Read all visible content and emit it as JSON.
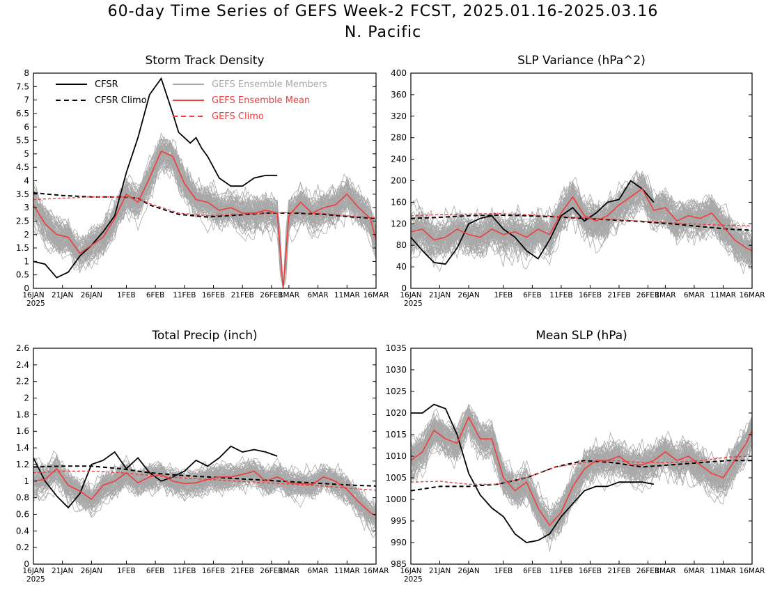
{
  "figure": {
    "title": "60-day Time Series of GEFS Week-2 FCST, 2025.01.16-2025.03.16",
    "subtitle": "N. Pacific"
  },
  "legend": {
    "items": [
      {
        "label": "CFSR",
        "color": "#000000",
        "style": "solid"
      },
      {
        "label": "CFSR Climo",
        "color": "#000000",
        "style": "dashed"
      },
      {
        "label": "GEFS Ensemble Members",
        "color": "#a8a8a8",
        "style": "solid"
      },
      {
        "label": "GEFS Ensemble Mean",
        "color": "#f03c3c",
        "style": "solid"
      },
      {
        "label": "GEFS Climo",
        "color": "#f03c3c",
        "style": "dashed"
      }
    ]
  },
  "colors": {
    "cfsr": "#000000",
    "members": "#a8a8a8",
    "mean": "#f03c3c",
    "gefs_climo": "#f03c3c"
  },
  "x_ticks": [
    "16JAN",
    "21JAN",
    "26JAN",
    "1FEB",
    "6FEB",
    "11FEB",
    "16FEB",
    "21FEB",
    "26FEB",
    "1MAR",
    "6MAR",
    "11MAR",
    "16MAR"
  ],
  "x_year": "2025",
  "chart_data": [
    {
      "type": "line",
      "title": "Storm Track Density",
      "ylim": [
        0,
        8
      ],
      "yticks": [
        "0",
        "0.5",
        "1",
        "1.5",
        "2",
        "2.5",
        "3",
        "3.5",
        "4",
        "4.5",
        "5",
        "5.5",
        "6",
        "6.5",
        "7",
        "7.5",
        "8"
      ],
      "x_range_days": [
        0,
        59
      ],
      "series": [
        {
          "name": "CFSR",
          "x": [
            0,
            2,
            4,
            6,
            8,
            10,
            12,
            14,
            16,
            18,
            20,
            22,
            24,
            25,
            26,
            27,
            28,
            29,
            30,
            32,
            34,
            36,
            38,
            40,
            41,
            42
          ],
          "values": [
            1.0,
            0.9,
            0.4,
            0.6,
            1.2,
            1.6,
            2.1,
            2.7,
            4.3,
            5.6,
            7.2,
            7.8,
            6.5,
            5.8,
            5.6,
            5.4,
            5.6,
            5.2,
            4.9,
            4.1,
            3.8,
            3.8,
            4.1,
            4.2,
            4.2,
            4.2
          ]
        },
        {
          "name": "CFSR Climo",
          "x": [
            0,
            5,
            10,
            15,
            18,
            20,
            25,
            30,
            35,
            40,
            45,
            50,
            55,
            59
          ],
          "values": [
            3.55,
            3.45,
            3.4,
            3.4,
            3.35,
            3.1,
            2.75,
            2.65,
            2.72,
            2.8,
            2.8,
            2.75,
            2.65,
            2.6
          ]
        },
        {
          "name": "GEFS Ensemble Mean",
          "x": [
            0,
            2,
            4,
            6,
            8,
            10,
            12,
            14,
            16,
            18,
            20,
            22,
            24,
            26,
            28,
            30,
            32,
            34,
            36,
            38,
            40,
            42,
            43,
            44,
            46,
            48,
            50,
            52,
            54,
            56,
            58,
            59
          ],
          "values": [
            3.1,
            2.4,
            2.0,
            1.9,
            1.3,
            1.6,
            1.9,
            2.6,
            3.5,
            3.2,
            4.1,
            5.1,
            4.9,
            3.9,
            3.3,
            3.2,
            2.9,
            3.0,
            2.8,
            2.8,
            2.9,
            2.8,
            0.0,
            2.7,
            3.2,
            2.8,
            3.0,
            3.1,
            3.5,
            3.0,
            2.6,
            1.8
          ]
        },
        {
          "name": "GEFS Climo",
          "x": [
            0,
            5,
            10,
            15,
            18,
            20,
            25,
            30,
            35,
            40,
            45,
            50,
            55,
            59
          ],
          "values": [
            3.3,
            3.35,
            3.4,
            3.4,
            3.35,
            3.15,
            2.8,
            2.7,
            2.75,
            2.8,
            2.82,
            2.78,
            2.68,
            2.62
          ]
        }
      ]
    },
    {
      "type": "line",
      "title": "SLP Variance (hPa^2)",
      "ylim": [
        0,
        400
      ],
      "yticks": [
        "0",
        "40",
        "80",
        "120",
        "160",
        "200",
        "240",
        "280",
        "320",
        "360",
        "400"
      ],
      "x_range_days": [
        0,
        59
      ],
      "series": [
        {
          "name": "CFSR",
          "x": [
            0,
            2,
            4,
            6,
            8,
            10,
            12,
            14,
            16,
            18,
            20,
            22,
            24,
            26,
            28,
            30,
            32,
            34,
            36,
            38,
            40,
            42
          ],
          "values": [
            95,
            70,
            48,
            45,
            75,
            120,
            130,
            135,
            110,
            95,
            70,
            55,
            90,
            135,
            150,
            125,
            140,
            160,
            165,
            200,
            185,
            160
          ]
        },
        {
          "name": "CFSR Climo",
          "x": [
            0,
            5,
            10,
            15,
            20,
            25,
            30,
            35,
            40,
            45,
            50,
            55,
            59
          ],
          "values": [
            130,
            132,
            135,
            136,
            135,
            133,
            130,
            127,
            124,
            120,
            115,
            110,
            108
          ]
        },
        {
          "name": "GEFS Ensemble Mean",
          "x": [
            0,
            2,
            4,
            6,
            8,
            10,
            12,
            14,
            16,
            18,
            20,
            22,
            24,
            26,
            28,
            30,
            32,
            34,
            36,
            38,
            40,
            42,
            44,
            46,
            48,
            50,
            52,
            54,
            56,
            58,
            59
          ],
          "values": [
            105,
            110,
            90,
            95,
            110,
            100,
            95,
            110,
            100,
            105,
            95,
            110,
            100,
            140,
            170,
            135,
            125,
            135,
            155,
            170,
            185,
            145,
            150,
            125,
            135,
            130,
            140,
            115,
            90,
            75,
            70
          ]
        },
        {
          "name": "GEFS Climo",
          "x": [
            0,
            5,
            10,
            15,
            20,
            25,
            30,
            35,
            40,
            45,
            50,
            55,
            59
          ],
          "values": [
            135,
            137,
            138,
            139,
            137,
            134,
            131,
            128,
            125,
            122,
            119,
            117,
            116
          ]
        }
      ]
    },
    {
      "type": "line",
      "title": "Total Precip (inch)",
      "ylim": [
        0,
        2.6
      ],
      "yticks": [
        "0",
        "0.2",
        "0.4",
        "0.6",
        "0.8",
        "1",
        "1.2",
        "1.4",
        "1.6",
        "1.8",
        "2",
        "2.2",
        "2.4",
        "2.6"
      ],
      "x_range_days": [
        0,
        59
      ],
      "series": [
        {
          "name": "CFSR",
          "x": [
            0,
            2,
            4,
            6,
            8,
            10,
            12,
            14,
            16,
            18,
            20,
            22,
            24,
            26,
            28,
            30,
            32,
            34,
            36,
            38,
            40,
            42
          ],
          "values": [
            1.28,
            1.0,
            0.82,
            0.68,
            0.85,
            1.2,
            1.25,
            1.35,
            1.15,
            1.28,
            1.1,
            1.0,
            1.05,
            1.12,
            1.25,
            1.18,
            1.28,
            1.42,
            1.35,
            1.38,
            1.35,
            1.3
          ]
        },
        {
          "name": "CFSR Climo",
          "x": [
            0,
            5,
            10,
            15,
            20,
            25,
            30,
            35,
            40,
            45,
            50,
            55,
            59
          ],
          "values": [
            1.17,
            1.18,
            1.18,
            1.15,
            1.1,
            1.07,
            1.05,
            1.03,
            1.01,
            0.99,
            0.97,
            0.95,
            0.94
          ]
        },
        {
          "name": "GEFS Ensemble Mean",
          "x": [
            0,
            2,
            4,
            6,
            8,
            10,
            12,
            14,
            16,
            18,
            20,
            22,
            24,
            26,
            28,
            30,
            32,
            34,
            36,
            38,
            40,
            42,
            44,
            46,
            48,
            50,
            52,
            54,
            56,
            58,
            59
          ],
          "values": [
            1.0,
            1.02,
            1.15,
            0.95,
            0.88,
            0.78,
            0.95,
            1.0,
            1.1,
            0.98,
            1.05,
            1.08,
            1.0,
            0.97,
            0.98,
            1.02,
            1.05,
            1.05,
            1.08,
            1.12,
            1.0,
            1.05,
            0.98,
            0.97,
            0.96,
            1.05,
            1.0,
            0.9,
            0.75,
            0.62,
            0.58
          ]
        },
        {
          "name": "GEFS Climo",
          "x": [
            0,
            5,
            10,
            15,
            20,
            25,
            30,
            35,
            40,
            45,
            50,
            55,
            59
          ],
          "values": [
            1.1,
            1.12,
            1.12,
            1.1,
            1.07,
            1.04,
            1.02,
            1.0,
            0.98,
            0.96,
            0.94,
            0.91,
            0.89
          ]
        }
      ]
    },
    {
      "type": "line",
      "title": "Mean SLP (hPa)",
      "ylim": [
        985,
        1035
      ],
      "yticks": [
        "985",
        "990",
        "995",
        "1000",
        "1005",
        "1010",
        "1015",
        "1020",
        "1025",
        "1030",
        "1035"
      ],
      "x_range_days": [
        0,
        59
      ],
      "series": [
        {
          "name": "CFSR",
          "x": [
            0,
            2,
            4,
            6,
            8,
            10,
            12,
            14,
            16,
            18,
            20,
            22,
            24,
            26,
            28,
            30,
            32,
            34,
            36,
            38,
            40,
            42
          ],
          "values": [
            1020,
            1020,
            1022,
            1021,
            1015,
            1006,
            1001,
            998,
            996,
            992,
            990,
            990.5,
            992,
            996,
            999,
            1002,
            1003,
            1003,
            1004,
            1004,
            1004,
            1003.5
          ]
        },
        {
          "name": "CFSR Climo",
          "x": [
            0,
            5,
            10,
            15,
            20,
            25,
            30,
            35,
            40,
            45,
            50,
            55,
            59
          ],
          "values": [
            1002,
            1003,
            1003,
            1003.5,
            1005,
            1007.5,
            1009,
            1008.5,
            1007.5,
            1008,
            1008.5,
            1009,
            1009
          ]
        },
        {
          "name": "GEFS Ensemble Mean",
          "x": [
            0,
            2,
            4,
            6,
            8,
            10,
            12,
            14,
            16,
            18,
            20,
            22,
            24,
            26,
            28,
            30,
            32,
            34,
            36,
            38,
            40,
            42,
            44,
            46,
            48,
            50,
            52,
            54,
            56,
            58,
            59
          ],
          "values": [
            1009,
            1011,
            1016,
            1014,
            1013,
            1019,
            1014,
            1014,
            1005,
            1002,
            1004,
            998,
            994,
            997,
            1003,
            1007,
            1009,
            1009,
            1010,
            1008,
            1008,
            1009,
            1011,
            1009,
            1010,
            1008,
            1006,
            1005,
            1009,
            1013,
            1016
          ]
        },
        {
          "name": "GEFS Climo",
          "x": [
            0,
            5,
            10,
            15,
            20,
            25,
            30,
            35,
            40,
            45,
            50,
            55,
            59
          ],
          "values": [
            1004,
            1004.2,
            1003.5,
            1003.5,
            1005,
            1007.5,
            1008.5,
            1009,
            1008.5,
            1008.5,
            1009,
            1009.8,
            1010
          ]
        }
      ]
    }
  ]
}
